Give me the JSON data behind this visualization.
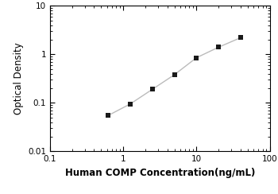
{
  "x": [
    0.625,
    1.25,
    2.5,
    5,
    10,
    20,
    40
  ],
  "y": [
    0.055,
    0.095,
    0.19,
    0.38,
    0.85,
    1.4,
    2.2
  ],
  "xlabel": "Human COMP Concentration(ng/mL)",
  "ylabel": "Optical Density",
  "xlim": [
    0.1,
    100
  ],
  "ylim": [
    0.01,
    10
  ],
  "xticks": [
    0.1,
    1,
    10,
    100
  ],
  "yticks": [
    0.01,
    0.1,
    1,
    10
  ],
  "line_color": "#bbbbbb",
  "marker_color": "#1a1a1a",
  "marker": "s",
  "marker_size": 4,
  "line_width": 1.0,
  "background_color": "#ffffff",
  "xlabel_fontsize": 8.5,
  "ylabel_fontsize": 8.5,
  "tick_fontsize": 7.5,
  "xlabel_bold": true,
  "ylabel_bold": false
}
